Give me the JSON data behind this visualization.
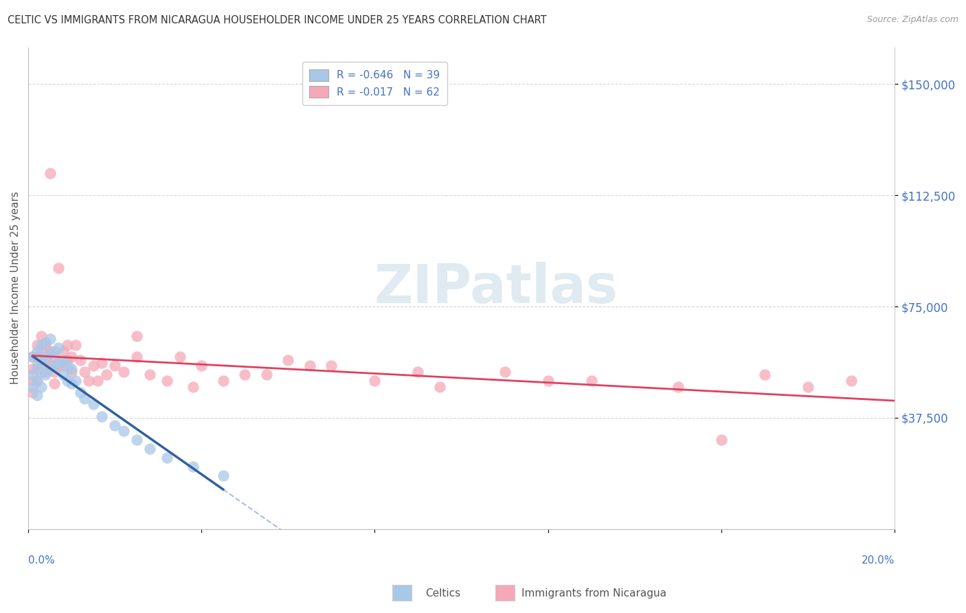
{
  "title": "CELTIC VS IMMIGRANTS FROM NICARAGUA HOUSEHOLDER INCOME UNDER 25 YEARS CORRELATION CHART",
  "source": "Source: ZipAtlas.com",
  "ylabel": "Householder Income Under 25 years",
  "xlim": [
    0.0,
    0.2
  ],
  "ylim": [
    0,
    162500
  ],
  "yticks": [
    37500,
    75000,
    112500,
    150000
  ],
  "ytick_labels": [
    "$37,500",
    "$75,000",
    "$112,500",
    "$150,000"
  ],
  "legend1_text": "R = -0.646   N = 39",
  "legend2_text": "R = -0.017   N = 62",
  "celtics_color": "#a8c8e8",
  "nicaragua_color": "#f5a8b8",
  "celtics_line_color": "#3060a0",
  "nicaragua_line_color": "#e04060",
  "watermark": "ZIPatlas",
  "background_color": "#ffffff",
  "grid_color": "#cccccc",
  "celtics_x": [
    0.001,
    0.001,
    0.001,
    0.002,
    0.002,
    0.002,
    0.002,
    0.003,
    0.003,
    0.003,
    0.003,
    0.004,
    0.004,
    0.004,
    0.005,
    0.005,
    0.005,
    0.006,
    0.006,
    0.007,
    0.007,
    0.008,
    0.008,
    0.009,
    0.009,
    0.01,
    0.01,
    0.011,
    0.012,
    0.013,
    0.015,
    0.017,
    0.02,
    0.022,
    0.025,
    0.028,
    0.032,
    0.038,
    0.045
  ],
  "celtics_y": [
    58000,
    52000,
    48000,
    60000,
    55000,
    50000,
    45000,
    62000,
    57000,
    53000,
    48000,
    63000,
    58000,
    52000,
    64000,
    59000,
    54000,
    60000,
    55000,
    61000,
    56000,
    57000,
    52000,
    55000,
    50000,
    54000,
    49000,
    50000,
    46000,
    44000,
    42000,
    38000,
    35000,
    33000,
    30000,
    27000,
    24000,
    21000,
    18000
  ],
  "nicaragua_x": [
    0.001,
    0.001,
    0.001,
    0.001,
    0.002,
    0.002,
    0.002,
    0.002,
    0.003,
    0.003,
    0.003,
    0.004,
    0.004,
    0.004,
    0.005,
    0.005,
    0.005,
    0.006,
    0.006,
    0.006,
    0.007,
    0.007,
    0.008,
    0.008,
    0.009,
    0.009,
    0.01,
    0.01,
    0.011,
    0.012,
    0.013,
    0.014,
    0.015,
    0.016,
    0.017,
    0.018,
    0.02,
    0.022,
    0.025,
    0.028,
    0.032,
    0.038,
    0.045,
    0.055,
    0.065,
    0.08,
    0.095,
    0.11,
    0.13,
    0.15,
    0.17,
    0.19,
    0.025,
    0.035,
    0.04,
    0.05,
    0.06,
    0.07,
    0.09,
    0.12,
    0.16,
    0.18
  ],
  "nicaragua_y": [
    58000,
    54000,
    50000,
    46000,
    62000,
    58000,
    54000,
    50000,
    65000,
    60000,
    56000,
    62000,
    57000,
    53000,
    120000,
    60000,
    55000,
    58000,
    53000,
    49000,
    88000,
    55000,
    60000,
    55000,
    62000,
    57000,
    58000,
    53000,
    62000,
    57000,
    53000,
    50000,
    55000,
    50000,
    56000,
    52000,
    55000,
    53000,
    58000,
    52000,
    50000,
    48000,
    50000,
    52000,
    55000,
    50000,
    48000,
    53000,
    50000,
    48000,
    52000,
    50000,
    65000,
    58000,
    55000,
    52000,
    57000,
    55000,
    53000,
    50000,
    30000,
    48000
  ]
}
